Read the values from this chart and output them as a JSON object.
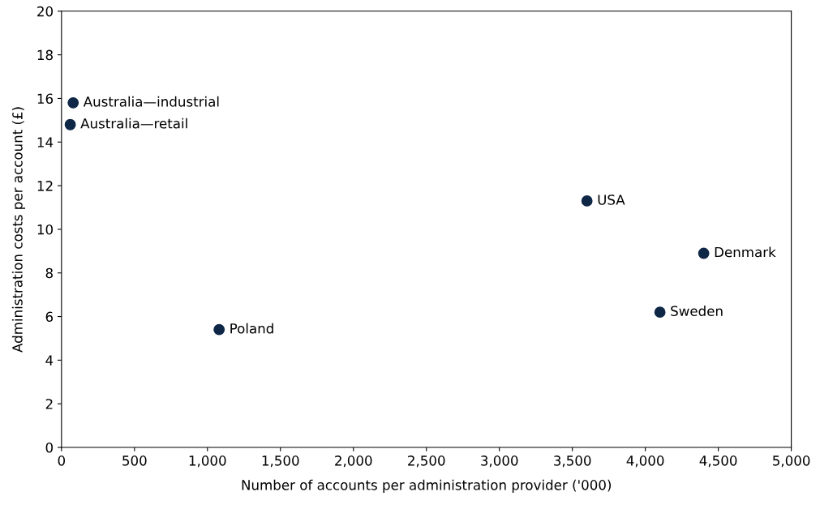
{
  "chart_data": {
    "type": "scatter",
    "xlabel": "Number of accounts per administration provider ('000)",
    "ylabel": "Administration costs per account (£)",
    "x": [
      80,
      60,
      1080,
      3600,
      4400,
      4100
    ],
    "series": [
      {
        "color": "#0f2747",
        "values": [
          15.8,
          14.8,
          5.4,
          11.3,
          8.9,
          6.2
        ]
      }
    ],
    "annotations": [
      {
        "text": "Australia—industrial",
        "x": 80,
        "y": 15.8
      },
      {
        "text": "Australia—retail",
        "x": 60,
        "y": 14.8
      },
      {
        "text": "Poland",
        "x": 1080,
        "y": 5.4
      },
      {
        "text": "USA",
        "x": 3600,
        "y": 11.3
      },
      {
        "text": "Denmark",
        "x": 4400,
        "y": 8.9
      },
      {
        "text": "Sweden",
        "x": 4100,
        "y": 6.2
      }
    ],
    "xlim": [
      0,
      5000
    ],
    "xticks": [
      {
        "value": 0,
        "label": "0"
      },
      {
        "value": 500,
        "label": "500"
      },
      {
        "value": 1000,
        "label": "1,000"
      },
      {
        "value": 1500,
        "label": "1,500"
      },
      {
        "value": 2000,
        "label": "2,000"
      },
      {
        "value": 2500,
        "label": "2,500"
      },
      {
        "value": 3000,
        "label": "3,000"
      },
      {
        "value": 3500,
        "label": "3,500"
      },
      {
        "value": 4000,
        "label": "4,000"
      },
      {
        "value": 4500,
        "label": "4,500"
      },
      {
        "value": 5000,
        "label": "5,000"
      }
    ],
    "ylim": [
      0,
      20
    ],
    "yticks": [
      0,
      2,
      4,
      6,
      8,
      10,
      12,
      14,
      16,
      18,
      20
    ],
    "grid": false,
    "legend": false,
    "marker": "circle"
  }
}
